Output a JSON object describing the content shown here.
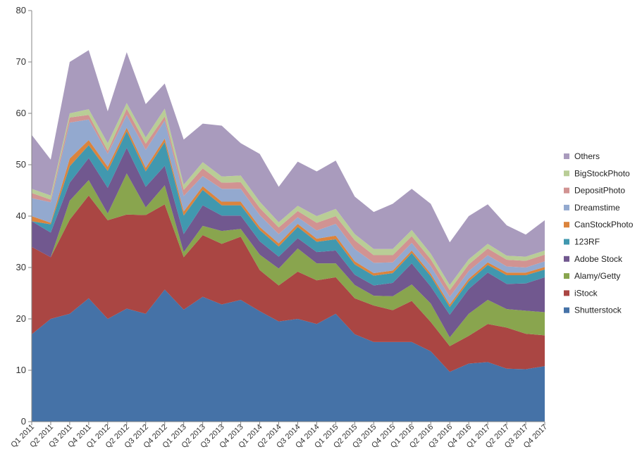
{
  "chart_data": {
    "type": "area",
    "stacked": true,
    "ylim": [
      0,
      80
    ],
    "yticks": [
      0,
      10,
      20,
      30,
      40,
      50,
      60,
      70,
      80
    ],
    "categories": [
      "Q1 2011",
      "Q2 2011",
      "Q3 2011",
      "Q4 2011",
      "Q1 2012",
      "Q2 2012",
      "Q3 2012",
      "Q4 2012",
      "Q1 2013",
      "Q2 2013",
      "Q3 2013",
      "Q4 2013",
      "Q1 2014",
      "Q2 2014",
      "Q3 2014",
      "Q4 2014",
      "Q1 2015",
      "Q2 2015",
      "Q3 2015",
      "Q4 2015",
      "Q1 2016",
      "Q2 2016",
      "Q3 2016",
      "Q4 2016",
      "Q1 2017",
      "Q2 2017",
      "Q3 2017",
      "Q4 2017"
    ],
    "legend_position": "right",
    "grid": false,
    "series": [
      {
        "name": "Shutterstock",
        "color": "#4572A7",
        "values": [
          17,
          20,
          21,
          24,
          20,
          22,
          21,
          25.7,
          21.8,
          24.3,
          22.8,
          23.7,
          21.5,
          19.5,
          20,
          19,
          21,
          17,
          15.5,
          15.5,
          15.5,
          13.7,
          9.7,
          11.3,
          11.6,
          10.3,
          10.2,
          10.8
        ]
      },
      {
        "name": "iStock",
        "color": "#AA4643",
        "values": [
          17,
          12,
          18.3,
          20,
          19.2,
          18.3,
          19.2,
          16.6,
          10.2,
          12,
          11.8,
          12.3,
          8,
          7,
          9.2,
          8.5,
          7.1,
          7,
          7.1,
          6.2,
          8,
          5.7,
          5,
          5.4,
          7.4,
          8,
          6.9,
          6
        ]
      },
      {
        "name": "Alamy/Getty",
        "color": "#89A54E",
        "values": [
          0,
          0,
          3.7,
          3,
          1.3,
          8,
          1.5,
          3.7,
          1,
          1.8,
          2.5,
          1.5,
          3,
          3.3,
          4.5,
          3.3,
          2.7,
          2.6,
          1.9,
          2.7,
          3.2,
          3.6,
          1.7,
          4.3,
          4.7,
          3.6,
          4.5,
          4.5
        ]
      },
      {
        "name": "Adobe Stock",
        "color": "#71588F",
        "values": [
          5,
          4.8,
          3.5,
          4.3,
          5,
          5,
          4,
          3.8,
          3.5,
          4,
          3,
          2.6,
          2.6,
          2.3,
          2,
          2.2,
          2.5,
          2,
          2,
          2.6,
          4.1,
          3.3,
          4.4,
          4.8,
          5.3,
          4.9,
          5.3,
          6.8
        ]
      },
      {
        "name": "123RF",
        "color": "#4198AF",
        "values": [
          0,
          1.6,
          3.2,
          2.5,
          3.3,
          3.2,
          3,
          4.6,
          3.6,
          3,
          2,
          2,
          2.2,
          2,
          2.2,
          2,
          2.2,
          2,
          1.9,
          1.9,
          2,
          2,
          1.5,
          1.5,
          1.5,
          1.7,
          1.6,
          1.5
        ]
      },
      {
        "name": "CanStockPhoto",
        "color": "#DB843D",
        "values": [
          1,
          0.3,
          1.5,
          1,
          0.8,
          0.7,
          0.7,
          0.7,
          0.8,
          0.7,
          0.7,
          0.7,
          0.6,
          0.6,
          0.6,
          0.6,
          0.7,
          0.6,
          0.5,
          0.5,
          0.5,
          0.5,
          0.5,
          0.5,
          0.5,
          0.5,
          0.5,
          0.5
        ]
      },
      {
        "name": "Dreamstime",
        "color": "#93A9CF",
        "values": [
          3.5,
          4,
          7,
          4,
          2.5,
          2.5,
          3.5,
          3.5,
          3,
          2,
          2.5,
          2.5,
          2.3,
          1.8,
          1.3,
          1.6,
          2.3,
          2.4,
          2,
          1.6,
          1.5,
          1.5,
          1.5,
          1.5,
          1.4,
          1.2,
          1,
          1.1
        ]
      },
      {
        "name": "DepositPhoto",
        "color": "#D19392",
        "values": [
          1,
          0.5,
          1,
          0.9,
          0.6,
          1.2,
          1.2,
          0.8,
          1.2,
          1.5,
          1.2,
          1.3,
          1.4,
          1.3,
          1.2,
          1.5,
          1.5,
          1.7,
          1.5,
          1.4,
          1.3,
          1.3,
          1.3,
          1.3,
          1.3,
          1.3,
          1.3,
          1.3
        ]
      },
      {
        "name": "BigStockPhoto",
        "color": "#B9CD96",
        "values": [
          0.8,
          0.8,
          0.8,
          1.1,
          1.5,
          1.1,
          1.2,
          1.5,
          1,
          1.2,
          1.2,
          1.3,
          1.2,
          1,
          1,
          1.3,
          1.4,
          1.2,
          1.2,
          1.2,
          1.2,
          1.1,
          1,
          1,
          0.9,
          0.8,
          0.8,
          0.8
        ]
      },
      {
        "name": "Others",
        "color": "#A99BBD",
        "values": [
          10.5,
          7,
          10,
          11.5,
          6.2,
          9.9,
          6.5,
          4.9,
          8.8,
          7.5,
          9.9,
          6.3,
          9.3,
          6.9,
          8.6,
          8.7,
          9.4,
          7.3,
          7.2,
          8.8,
          8,
          9.7,
          8.3,
          8.4,
          7.7,
          5.9,
          4.3,
          5.9
        ]
      }
    ]
  }
}
